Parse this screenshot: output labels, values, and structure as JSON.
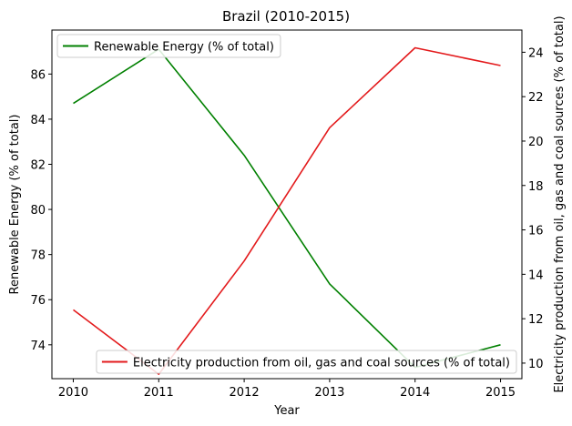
{
  "chart_data": {
    "type": "line",
    "title": "Brazil (2010-2015)",
    "xlabel": "Year",
    "x": [
      2010,
      2011,
      2012,
      2013,
      2014,
      2015
    ],
    "xlim": [
      2009.75,
      2015.25
    ],
    "x_ticks": [
      2010,
      2011,
      2012,
      2013,
      2014,
      2015
    ],
    "x_tick_labels": [
      "2010",
      "2011",
      "2012",
      "2013",
      "2014",
      "2015"
    ],
    "grid": false,
    "axes": {
      "left": {
        "label": "Renewable Energy (% of total)",
        "ylim": [
          72.5,
          87.95
        ],
        "ticks": [
          74,
          76,
          78,
          80,
          82,
          84,
          86
        ],
        "tick_labels": [
          "74",
          "76",
          "78",
          "80",
          "82",
          "84",
          "86"
        ]
      },
      "right": {
        "label": "Electricity production from oil, gas and coal sources (% of total)",
        "ylim": [
          9.3,
          25.0
        ],
        "ticks": [
          10,
          12,
          14,
          16,
          18,
          20,
          22,
          24
        ],
        "tick_labels": [
          "10",
          "12",
          "14",
          "16",
          "18",
          "20",
          "22",
          "24"
        ]
      }
    },
    "series": [
      {
        "name": "Renewable Energy (% of total)",
        "axis": "left",
        "color": "#008000",
        "legend_position": "upper-left",
        "values": [
          84.7,
          87.1,
          82.4,
          76.7,
          73.0,
          74.0
        ]
      },
      {
        "name": "Electricity production from oil, gas and coal sources (% of total)",
        "axis": "right",
        "color": "#e31a1c",
        "legend_position": "lower-right",
        "values": [
          12.4,
          9.5,
          14.6,
          20.6,
          24.2,
          23.4
        ]
      }
    ]
  }
}
